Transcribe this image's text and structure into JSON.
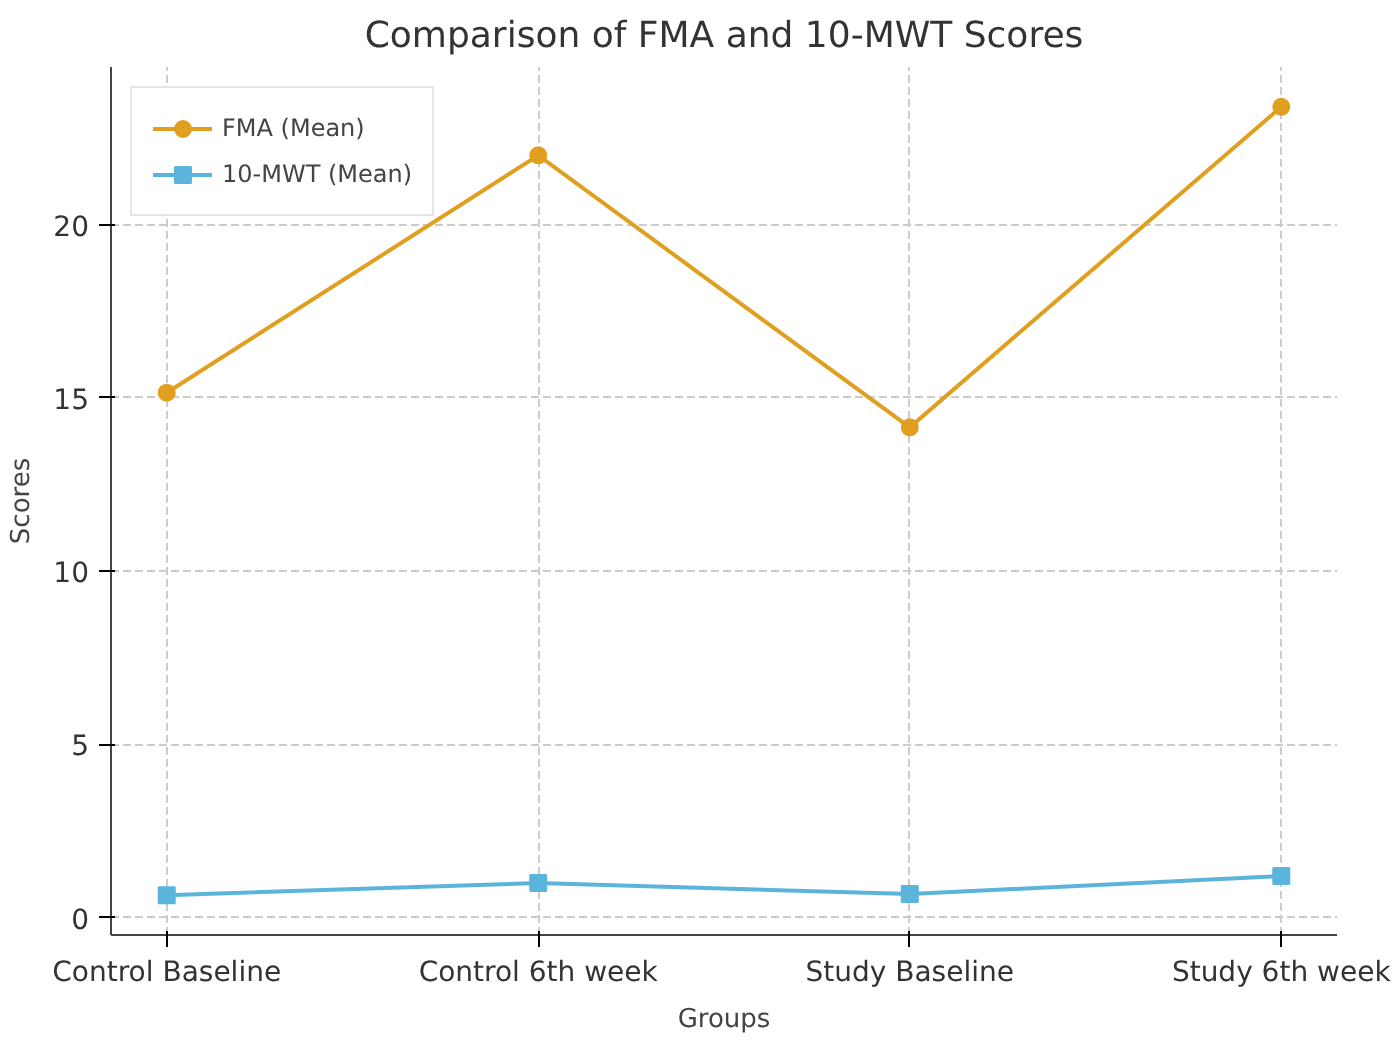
{
  "chart_data": {
    "type": "line",
    "title": "Comparison of FMA and 10-MWT Scores",
    "xlabel": "Groups",
    "ylabel": "Scores",
    "categories": [
      "Control Baseline",
      "Control 6th week",
      "Study Baseline",
      "Study 6th week"
    ],
    "series": [
      {
        "name": "FMA (Mean)",
        "color": "#e09f1f",
        "marker": "circle",
        "values": [
          15.15,
          22.0,
          14.15,
          23.4
        ]
      },
      {
        "name": "10-MWT (Mean)",
        "color": "#5ab4dc",
        "marker": "square",
        "values": [
          0.65,
          1.0,
          0.68,
          1.2
        ]
      }
    ],
    "ylim": [
      -0.5,
      24.55
    ],
    "yticks": [
      0,
      5,
      10,
      15,
      20
    ],
    "grid": true,
    "legend": "top left",
    "line_style": "solid"
  }
}
